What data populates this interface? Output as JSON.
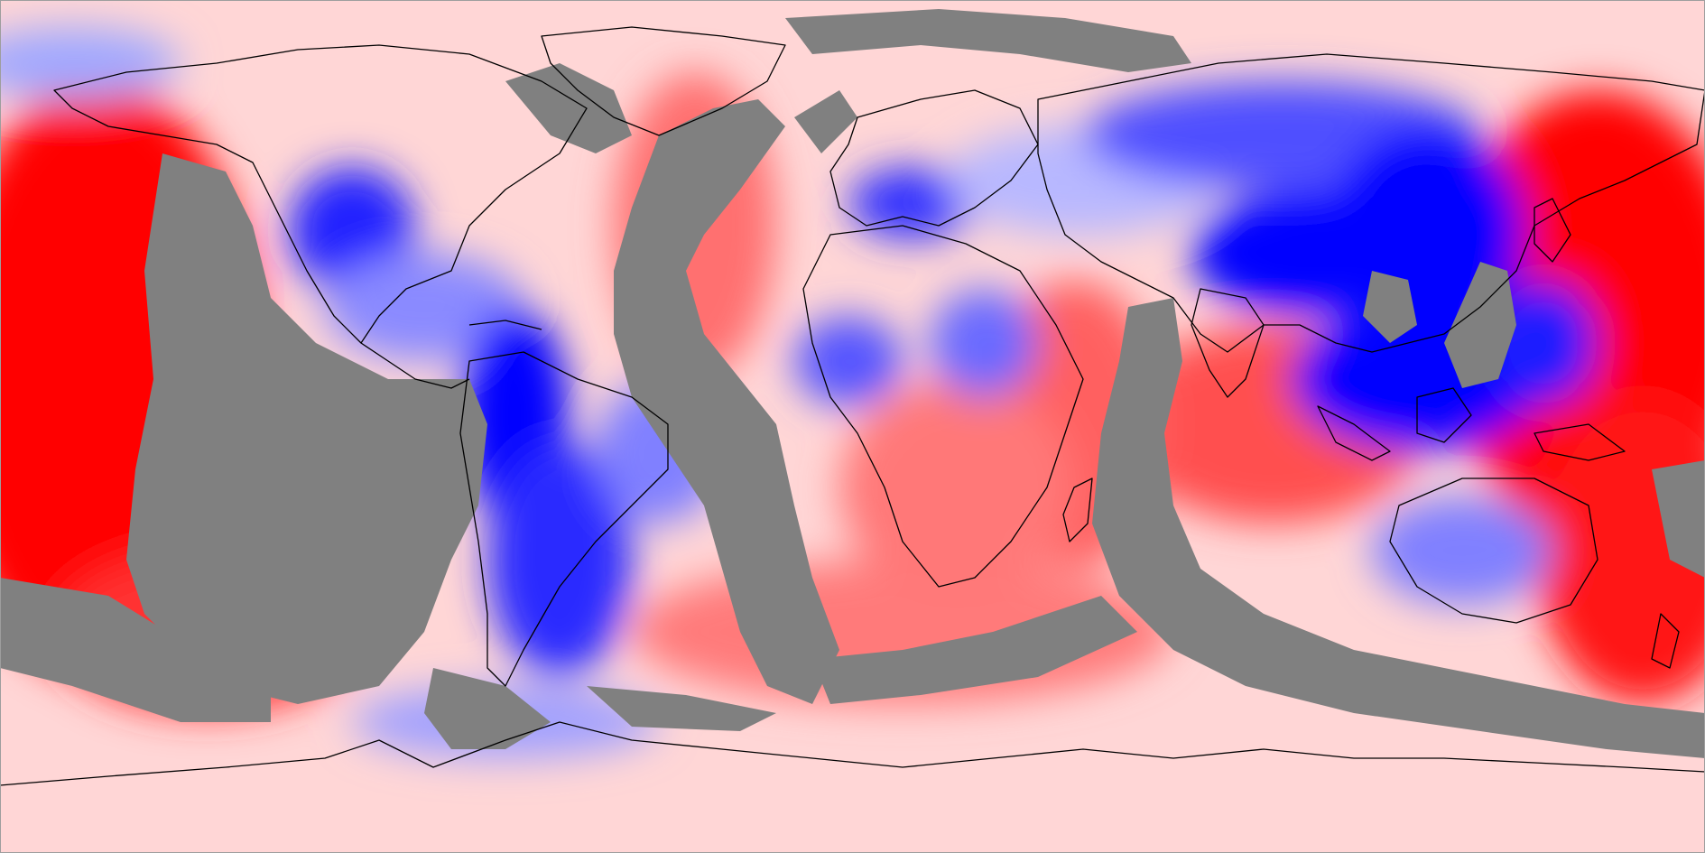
{
  "map": {
    "projection": "equirectangular",
    "type": "global-scalar-field",
    "colors": {
      "strong_positive": "#ff0000",
      "medium_positive": "#ff6666",
      "weak_positive": "#ffcccc",
      "neutral": "#ffffff",
      "weak_negative": "#c8ccff",
      "medium_negative": "#6a6aff",
      "strong_negative": "#0000ff",
      "mask": "#808080",
      "coastline": "#000000"
    },
    "has_legend": false,
    "has_title": false,
    "has_axes": false
  }
}
